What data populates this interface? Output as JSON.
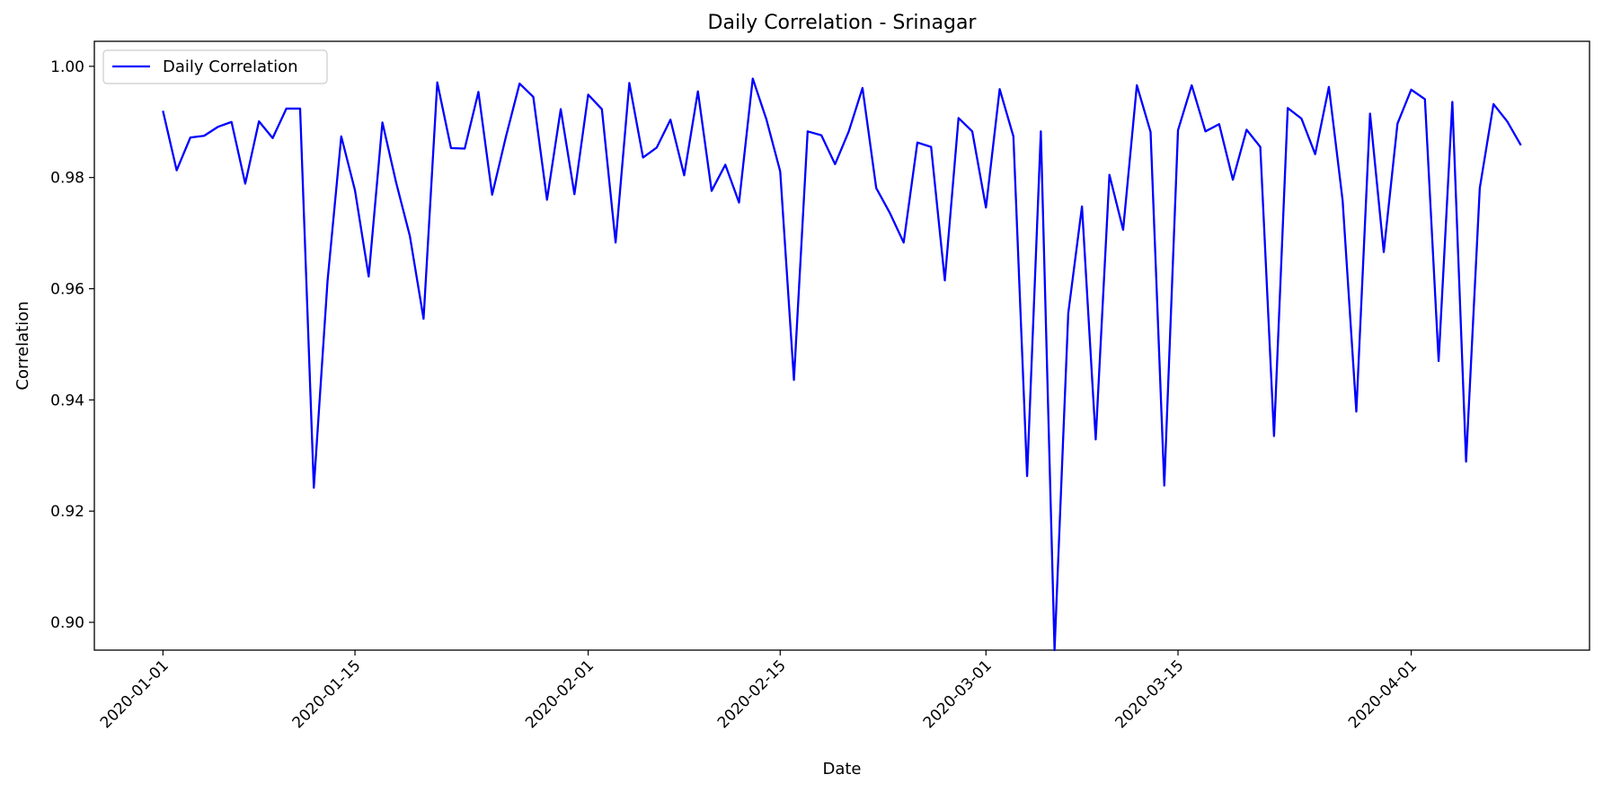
{
  "chart_data": {
    "type": "line",
    "title": "Daily Correlation - Srinagar",
    "xlabel": "Date",
    "ylabel": "Correlation",
    "ylim": [
      0.895,
      1.0045
    ],
    "xlim": [
      "2019-12-27",
      "2020-04-14"
    ],
    "grid": false,
    "legend": {
      "position": "top-left",
      "entries": [
        "Daily Correlation"
      ]
    },
    "series_color": "#0000ff",
    "x_ticks": [
      "2020-01-01",
      "2020-01-15",
      "2020-02-01",
      "2020-02-15",
      "2020-03-01",
      "2020-03-15",
      "2020-04-01"
    ],
    "y_ticks": [
      "0.90",
      "0.92",
      "0.94",
      "0.96",
      "0.98",
      "1.00"
    ],
    "series": [
      {
        "name": "Daily Correlation",
        "x": [
          "2020-01-01",
          "2020-01-02",
          "2020-01-03",
          "2020-01-04",
          "2020-01-05",
          "2020-01-06",
          "2020-01-07",
          "2020-01-08",
          "2020-01-09",
          "2020-01-10",
          "2020-01-11",
          "2020-01-12",
          "2020-01-13",
          "2020-01-14",
          "2020-01-15",
          "2020-01-16",
          "2020-01-17",
          "2020-01-18",
          "2020-01-19",
          "2020-01-20",
          "2020-01-21",
          "2020-01-22",
          "2020-01-23",
          "2020-01-24",
          "2020-01-25",
          "2020-01-26",
          "2020-01-27",
          "2020-01-28",
          "2020-01-29",
          "2020-01-30",
          "2020-01-31",
          "2020-02-01",
          "2020-02-02",
          "2020-02-03",
          "2020-02-04",
          "2020-02-05",
          "2020-02-06",
          "2020-02-07",
          "2020-02-08",
          "2020-02-09",
          "2020-02-10",
          "2020-02-11",
          "2020-02-12",
          "2020-02-13",
          "2020-02-14",
          "2020-02-15",
          "2020-02-16",
          "2020-02-17",
          "2020-02-18",
          "2020-02-19",
          "2020-02-20",
          "2020-02-21",
          "2020-02-22",
          "2020-02-23",
          "2020-02-24",
          "2020-02-25",
          "2020-02-26",
          "2020-02-27",
          "2020-02-28",
          "2020-02-29",
          "2020-03-01",
          "2020-03-02",
          "2020-03-03",
          "2020-03-04",
          "2020-03-05",
          "2020-03-06",
          "2020-03-07",
          "2020-03-08",
          "2020-03-09",
          "2020-03-10",
          "2020-03-11",
          "2020-03-12",
          "2020-03-13",
          "2020-03-14",
          "2020-03-15",
          "2020-03-16",
          "2020-03-17",
          "2020-03-18",
          "2020-03-19",
          "2020-03-20",
          "2020-03-21",
          "2020-03-22",
          "2020-03-23",
          "2020-03-24",
          "2020-03-25",
          "2020-03-26",
          "2020-03-27",
          "2020-03-28",
          "2020-03-29",
          "2020-03-30",
          "2020-03-31",
          "2020-04-01",
          "2020-04-02",
          "2020-04-03",
          "2020-04-04",
          "2020-04-05",
          "2020-04-06",
          "2020-04-07",
          "2020-04-08",
          "2020-04-09"
        ],
        "values": [
          0.992,
          0.9813,
          0.9872,
          0.9875,
          0.9891,
          0.99,
          0.9789,
          0.9901,
          0.9871,
          0.9924,
          0.9924,
          0.9242,
          0.9614,
          0.9874,
          0.9777,
          0.9622,
          0.9899,
          0.9791,
          0.9695,
          0.9546,
          0.9971,
          0.9853,
          0.9852,
          0.9954,
          0.9769,
          0.9873,
          0.9969,
          0.9945,
          0.976,
          0.9923,
          0.977,
          0.9949,
          0.9923,
          0.9683,
          0.997,
          0.9836,
          0.9854,
          0.9904,
          0.9804,
          0.9955,
          0.9776,
          0.9823,
          0.9755,
          0.9978,
          0.9904,
          0.9811,
          0.9436,
          0.9883,
          0.9876,
          0.9824,
          0.9883,
          0.9961,
          0.9781,
          0.9736,
          0.9683,
          0.9863,
          0.9855,
          0.9615,
          0.9907,
          0.9883,
          0.9746,
          0.9959,
          0.9874,
          0.9263,
          0.9883,
          0.895,
          0.9556,
          0.9748,
          0.9329,
          0.9805,
          0.9706,
          0.9966,
          0.9882,
          0.9246,
          0.9885,
          0.9966,
          0.9883,
          0.9896,
          0.9796,
          0.9886,
          0.9855,
          0.9335,
          0.9925,
          0.9906,
          0.9842,
          0.9963,
          0.9759,
          0.9379,
          0.9915,
          0.9666,
          0.9897,
          0.9958,
          0.9941,
          0.947,
          0.9936,
          0.9289,
          0.9781,
          0.9932,
          0.9901,
          0.9858
        ]
      }
    ]
  }
}
